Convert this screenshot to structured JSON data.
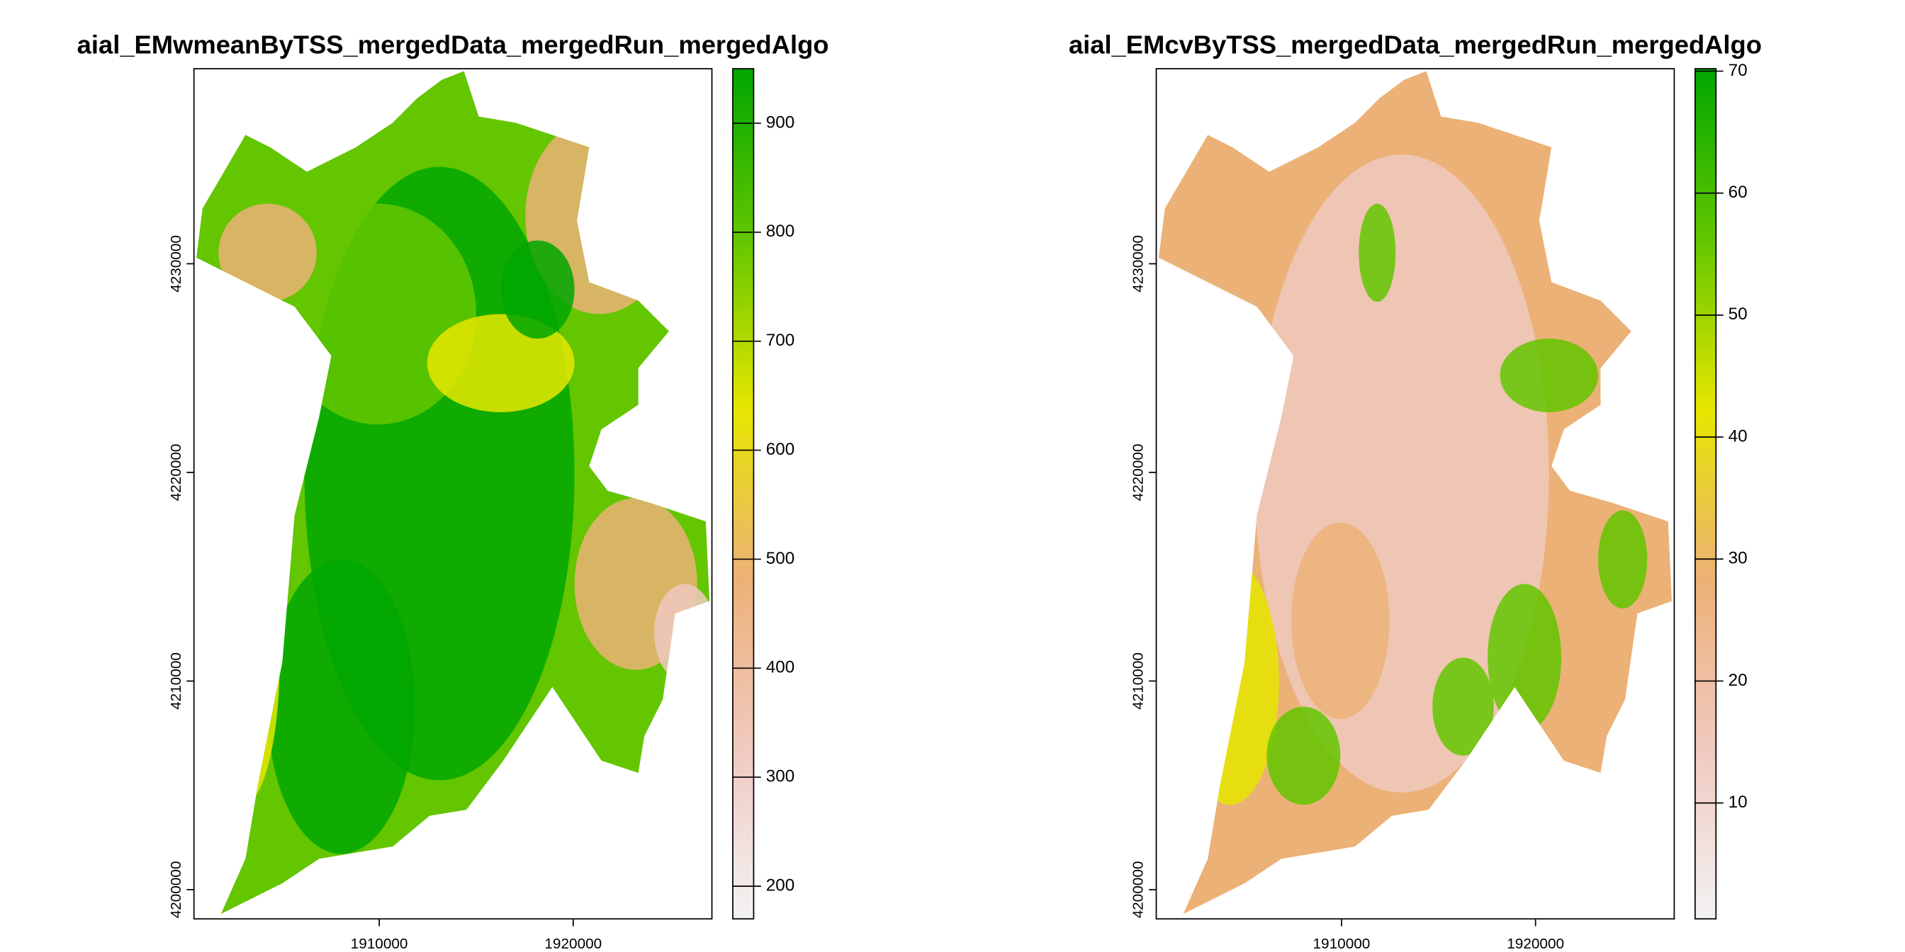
{
  "chart_data": [
    {
      "type": "raster",
      "title": "aial_EMwmeanByTSS_mergedData_mergedRun_mergedAlgo",
      "xlim": [
        1900450,
        1927150
      ],
      "ylim": [
        4198600,
        4239350
      ],
      "xticks": [
        1910000,
        1920000
      ],
      "yticks": [
        4200000,
        4210000,
        4220000,
        4230000
      ],
      "zlim": [
        170,
        950
      ],
      "zticks": [
        200,
        300,
        400,
        500,
        600,
        700,
        800,
        900
      ],
      "colors": [
        "#f2f2f2",
        "#f0c9c0",
        "#ecb176",
        "#e6e600",
        "#63c600",
        "#00a600"
      ]
    },
    {
      "type": "raster",
      "title": "aial_EMcvByTSS_mergedData_mergedRun_mergedAlgo",
      "xlim": [
        1900450,
        1927150
      ],
      "ylim": [
        4198600,
        4239350
      ],
      "xticks": [
        1910000,
        1920000
      ],
      "yticks": [
        4200000,
        4210000,
        4220000,
        4230000
      ],
      "zlim": [
        0.5,
        70.2
      ],
      "zticks": [
        10,
        20,
        30,
        40,
        50,
        60,
        70
      ],
      "colors": [
        "#f2f2f2",
        "#f0c9c0",
        "#ecb176",
        "#e6e600",
        "#63c600",
        "#00a600"
      ]
    }
  ]
}
